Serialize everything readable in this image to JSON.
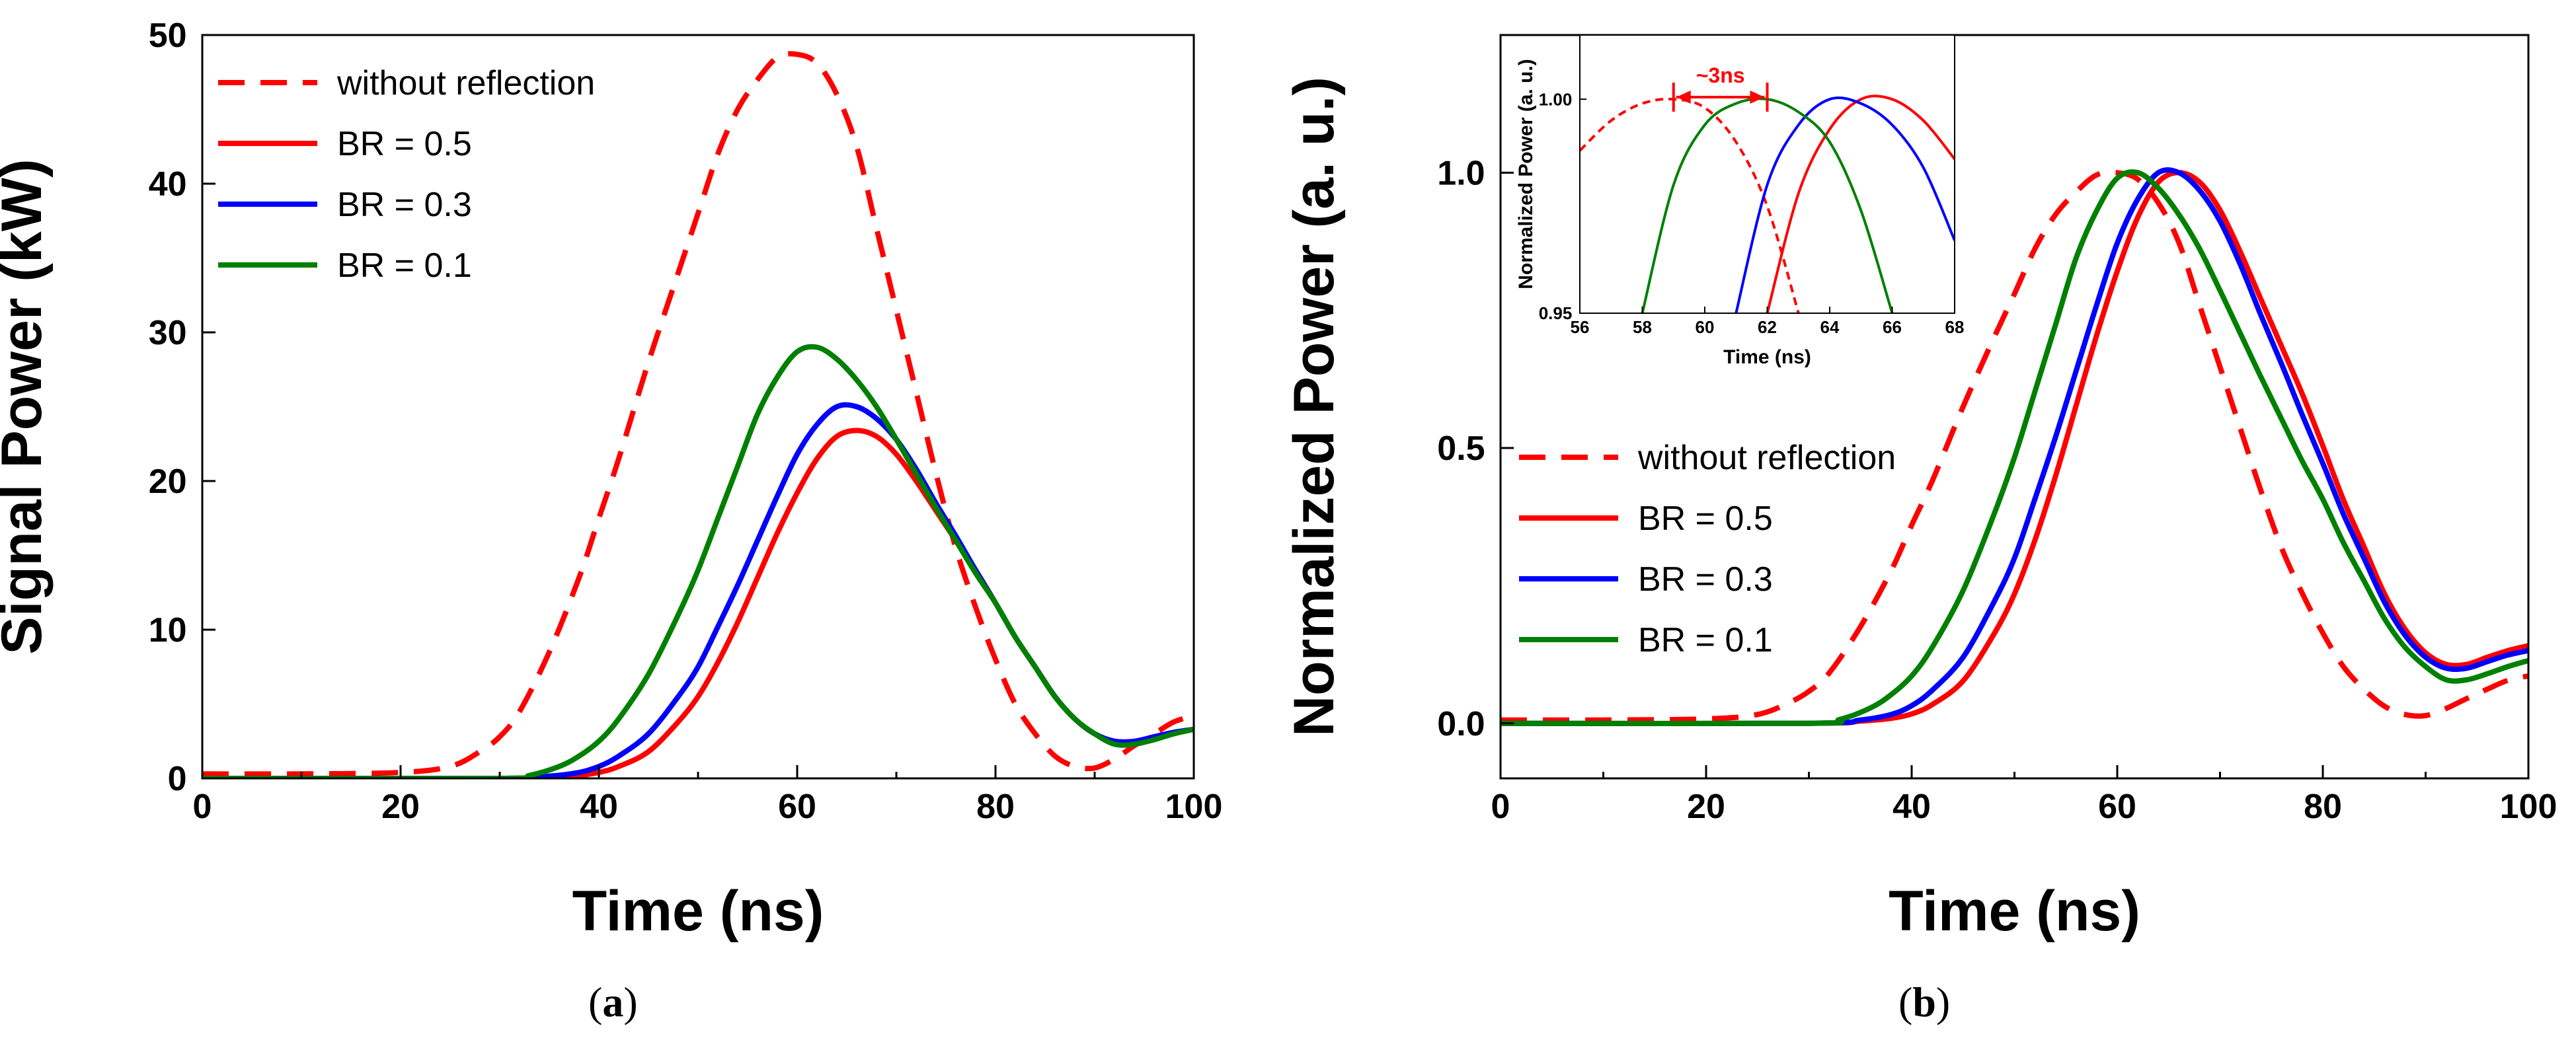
{
  "chart_data": [
    {
      "type": "line",
      "panel_label": "a",
      "xlabel": "Time (ns)",
      "ylabel": "Signal Power (kW)",
      "xlim": [
        0,
        100
      ],
      "ylim": [
        0,
        50
      ],
      "xticks": [
        "0",
        "20",
        "40",
        "60",
        "80",
        "100"
      ],
      "yticks": [
        "0",
        "10",
        "20",
        "30",
        "40",
        "50"
      ],
      "legend_position": "top-left",
      "series": [
        {
          "name": "without reflection",
          "color": "#ff0000",
          "style": "dashed",
          "x": [
            0,
            10,
            20,
            25,
            28,
            30,
            32,
            35,
            38,
            40,
            42,
            45,
            48,
            50,
            52,
            54,
            56,
            58,
            60,
            62,
            64,
            66,
            68,
            70,
            72,
            74,
            76,
            78,
            80,
            82,
            84,
            86,
            88,
            90,
            92,
            94,
            96,
            98,
            100
          ],
          "y": [
            0.3,
            0.3,
            0.4,
            0.8,
            1.8,
            2.8,
            4.5,
            8.5,
            13.5,
            17.5,
            21.5,
            28,
            34,
            38,
            42,
            45,
            47,
            48.5,
            48.7,
            48.1,
            46,
            42.5,
            37,
            31.5,
            26,
            20.5,
            15.5,
            11.5,
            8,
            5,
            3,
            1.5,
            0.8,
            0.7,
            1.3,
            2.2,
            3,
            3.8,
            4.2
          ]
        },
        {
          "name": "BR = 0.5",
          "color": "#ff0000",
          "style": "solid",
          "x": [
            0,
            30,
            35,
            38,
            40,
            42,
            45,
            48,
            50,
            52,
            54,
            56,
            58,
            60,
            62,
            64,
            66,
            68,
            70,
            72,
            74,
            76,
            78,
            80,
            82,
            84,
            86,
            88,
            90,
            92,
            94,
            96,
            98,
            100
          ],
          "y": [
            0,
            0,
            0.1,
            0.2,
            0.4,
            0.8,
            1.8,
            3.8,
            5.5,
            7.8,
            10.5,
            13.5,
            16.5,
            19.2,
            21.5,
            23,
            23.4,
            23,
            21.8,
            20,
            18,
            16,
            14,
            11.8,
            9.5,
            7.5,
            5.5,
            4,
            3,
            2.5,
            2.5,
            2.8,
            3.1,
            3.3
          ]
        },
        {
          "name": "BR = 0.3",
          "color": "#0000ff",
          "style": "solid",
          "x": [
            0,
            30,
            35,
            38,
            40,
            42,
            45,
            48,
            50,
            52,
            54,
            56,
            58,
            60,
            62,
            64,
            66,
            68,
            70,
            72,
            74,
            76,
            78,
            80,
            82,
            84,
            86,
            88,
            90,
            92,
            94,
            96,
            98,
            100
          ],
          "y": [
            0,
            0,
            0.15,
            0.4,
            0.8,
            1.5,
            3,
            5.5,
            7.5,
            10.2,
            13,
            16,
            19,
            21.8,
            23.8,
            25,
            25,
            24.2,
            22.8,
            20.8,
            18.5,
            16.3,
            14,
            11.8,
            9.5,
            7.5,
            5.5,
            4,
            3,
            2.5,
            2.5,
            2.8,
            3.1,
            3.3
          ]
        },
        {
          "name": "BR = 0.1",
          "color": "#008000",
          "style": "solid",
          "x": [
            0,
            30,
            33,
            36,
            38,
            40,
            42,
            45,
            48,
            50,
            52,
            54,
            56,
            58,
            60,
            62,
            64,
            66,
            68,
            70,
            72,
            74,
            76,
            78,
            80,
            82,
            84,
            86,
            88,
            90,
            92,
            94,
            96,
            98,
            100
          ],
          "y": [
            0,
            0,
            0.2,
            0.8,
            1.5,
            2.5,
            4,
            7,
            11,
            14,
            17.5,
            21,
            24.5,
            27,
            28.7,
            29,
            28.2,
            26.8,
            25,
            22.8,
            20.5,
            18.2,
            16,
            13.8,
            11.8,
            9.5,
            7.5,
            5.5,
            4,
            3,
            2.3,
            2.3,
            2.6,
            3,
            3.3
          ]
        }
      ]
    },
    {
      "type": "line",
      "panel_label": "b",
      "xlabel": "Time (ns)",
      "ylabel": "Normalized Power (a. u.)",
      "xlim": [
        0,
        100
      ],
      "ylim": [
        -0.1,
        1.25
      ],
      "xticks": [
        "0",
        "20",
        "40",
        "60",
        "80",
        "100"
      ],
      "yticks": [
        "0.0",
        "0.5",
        "1.0"
      ],
      "legend_position": "center-left",
      "series": [
        {
          "name": "without reflection",
          "color": "#ff0000",
          "style": "dashed",
          "x": [
            0,
            10,
            20,
            25,
            28,
            30,
            32,
            35,
            38,
            40,
            42,
            45,
            48,
            50,
            52,
            54,
            56,
            58,
            60,
            62,
            64,
            66,
            68,
            70,
            72,
            74,
            76,
            78,
            80,
            82,
            84,
            86,
            88,
            90,
            92,
            94,
            96,
            98,
            100
          ],
          "y": [
            0.006,
            0.006,
            0.008,
            0.016,
            0.037,
            0.058,
            0.092,
            0.175,
            0.277,
            0.36,
            0.44,
            0.575,
            0.7,
            0.78,
            0.862,
            0.924,
            0.965,
            0.996,
            1.0,
            0.988,
            0.945,
            0.873,
            0.76,
            0.647,
            0.534,
            0.421,
            0.318,
            0.236,
            0.164,
            0.103,
            0.062,
            0.031,
            0.016,
            0.014,
            0.027,
            0.045,
            0.062,
            0.078,
            0.086
          ]
        },
        {
          "name": "BR = 0.5",
          "color": "#ff0000",
          "style": "solid",
          "x": [
            0,
            30,
            35,
            38,
            40,
            42,
            45,
            48,
            50,
            52,
            54,
            56,
            58,
            60,
            62,
            64,
            66,
            68,
            70,
            72,
            74,
            76,
            78,
            80,
            82,
            84,
            86,
            88,
            90,
            92,
            94,
            96,
            98,
            100
          ],
          "y": [
            0,
            0,
            0.004,
            0.009,
            0.017,
            0.034,
            0.077,
            0.162,
            0.235,
            0.333,
            0.449,
            0.577,
            0.705,
            0.821,
            0.919,
            0.983,
            1.0,
            0.983,
            0.932,
            0.855,
            0.769,
            0.684,
            0.598,
            0.504,
            0.406,
            0.321,
            0.235,
            0.171,
            0.128,
            0.107,
            0.107,
            0.12,
            0.132,
            0.141
          ]
        },
        {
          "name": "BR = 0.3",
          "color": "#0000ff",
          "style": "solid",
          "x": [
            0,
            30,
            35,
            38,
            40,
            42,
            45,
            48,
            50,
            52,
            54,
            56,
            58,
            60,
            62,
            64,
            66,
            68,
            70,
            72,
            74,
            76,
            78,
            80,
            82,
            84,
            86,
            88,
            90,
            92,
            94,
            96,
            98,
            100
          ],
          "y": [
            0,
            0,
            0.006,
            0.016,
            0.032,
            0.06,
            0.12,
            0.22,
            0.3,
            0.408,
            0.52,
            0.64,
            0.76,
            0.872,
            0.952,
            1.0,
            1.0,
            0.968,
            0.912,
            0.832,
            0.74,
            0.652,
            0.56,
            0.472,
            0.38,
            0.3,
            0.22,
            0.16,
            0.12,
            0.1,
            0.1,
            0.112,
            0.124,
            0.132
          ]
        },
        {
          "name": "BR = 0.1",
          "color": "#008000",
          "style": "solid",
          "x": [
            0,
            30,
            33,
            36,
            38,
            40,
            42,
            45,
            48,
            50,
            52,
            54,
            56,
            58,
            60,
            62,
            64,
            66,
            68,
            70,
            72,
            74,
            76,
            78,
            80,
            82,
            84,
            86,
            88,
            90,
            92,
            94,
            96,
            98,
            100
          ],
          "y": [
            0,
            0,
            0.007,
            0.028,
            0.052,
            0.086,
            0.138,
            0.241,
            0.379,
            0.483,
            0.603,
            0.724,
            0.845,
            0.931,
            0.99,
            1.0,
            0.972,
            0.924,
            0.862,
            0.786,
            0.707,
            0.628,
            0.552,
            0.476,
            0.407,
            0.328,
            0.259,
            0.19,
            0.138,
            0.103,
            0.079,
            0.079,
            0.09,
            0.103,
            0.114
          ]
        }
      ]
    },
    {
      "type": "line",
      "role": "inset",
      "xlabel": "Time (ns)",
      "ylabel": "Normalized Power (a. u.)",
      "xlim": [
        56,
        68
      ],
      "ylim": [
        0.95,
        1.015
      ],
      "xticks": [
        "56",
        "58",
        "60",
        "62",
        "64",
        "66",
        "68"
      ],
      "yticks": [
        "0.95",
        "1.00"
      ],
      "annotation": "~3ns",
      "annotation_span": [
        59,
        62
      ],
      "series": [
        {
          "name": "without reflection",
          "color": "#ff0000",
          "style": "dashed",
          "x": [
            56,
            57,
            58,
            59,
            60,
            61,
            62,
            63
          ],
          "y": [
            0.988,
            0.995,
            0.999,
            1.0,
            0.998,
            0.99,
            0.975,
            0.95
          ]
        },
        {
          "name": "BR = 0.5",
          "color": "#ff0000",
          "style": "solid",
          "x": [
            62,
            63,
            64,
            65,
            66,
            67,
            68
          ],
          "y": [
            0.95,
            0.978,
            0.993,
            1.0,
            1.0,
            0.995,
            0.986
          ]
        },
        {
          "name": "BR = 0.3",
          "color": "#0000ff",
          "style": "solid",
          "x": [
            61,
            62,
            63,
            64,
            65,
            66,
            67,
            68
          ],
          "y": [
            0.95,
            0.98,
            0.994,
            1.0,
            0.999,
            0.994,
            0.984,
            0.967
          ]
        },
        {
          "name": "BR = 0.1",
          "color": "#008000",
          "style": "solid",
          "x": [
            58,
            59,
            60,
            61,
            62,
            63,
            64,
            65,
            66
          ],
          "y": [
            0.95,
            0.98,
            0.994,
            0.999,
            1.0,
            0.997,
            0.99,
            0.974,
            0.95
          ]
        }
      ]
    }
  ]
}
